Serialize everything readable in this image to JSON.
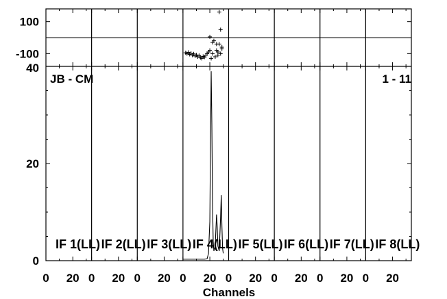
{
  "chart_data": {
    "type": "line",
    "baseline": "JB - CM",
    "scan_label": "1 - 11",
    "xlabel": "Channels",
    "phase_yticks": [
      "100",
      "-100"
    ],
    "amp_yticks": [
      "40",
      "20",
      "0"
    ],
    "x_ticks": [
      "0",
      "20"
    ],
    "phase_ylim": [
      -180,
      180
    ],
    "amp_ylim": [
      0,
      40
    ],
    "xlim": [
      0,
      34
    ],
    "panels": [
      {
        "label": "IF 1(LL)"
      },
      {
        "label": "IF 2(LL)"
      },
      {
        "label": "IF 3(LL)"
      },
      {
        "label": "IF 4(LL)",
        "amplitude": {
          "x": [
            0,
            1,
            2,
            4,
            6,
            8,
            10,
            12,
            14,
            16,
            18,
            19,
            20,
            20.5,
            21,
            21.5,
            22,
            22.5,
            23,
            24,
            25,
            25.5,
            26,
            27,
            28,
            28.5,
            29,
            29.5,
            30
          ],
          "y": [
            0.3,
            0.3,
            0.3,
            0.3,
            0.3,
            0.3,
            0.3,
            0.3,
            0.3,
            0.3,
            0.4,
            1.5,
            8,
            25,
            39,
            28,
            12,
            4,
            2,
            3,
            9.5,
            7,
            3,
            2,
            9,
            13.5,
            7,
            2.5,
            1.5
          ]
        },
        "phase": {
          "x": [
            2,
            3,
            4,
            5,
            6,
            7,
            8,
            9,
            10,
            11,
            12,
            13,
            14,
            15,
            16,
            17,
            18,
            19,
            20,
            20,
            21,
            22,
            22,
            23,
            24,
            25,
            25,
            26,
            26,
            27,
            27,
            28,
            28,
            29,
            29
          ],
          "y": [
            -95,
            -100,
            -92,
            -105,
            -98,
            -110,
            -102,
            -115,
            -108,
            -120,
            -112,
            -125,
            -130,
            -118,
            -122,
            -110,
            -100,
            -90,
            -80,
            5,
            -130,
            -100,
            -30,
            -20,
            -120,
            -80,
            -40,
            -110,
            -90,
            160,
            -40,
            50,
            -100,
            -70,
            -60
          ]
        }
      },
      {
        "label": "IF 5(LL)"
      },
      {
        "label": "IF 6(LL)"
      },
      {
        "label": "IF 7(LL)"
      },
      {
        "label": "IF 8(LL)"
      }
    ]
  }
}
